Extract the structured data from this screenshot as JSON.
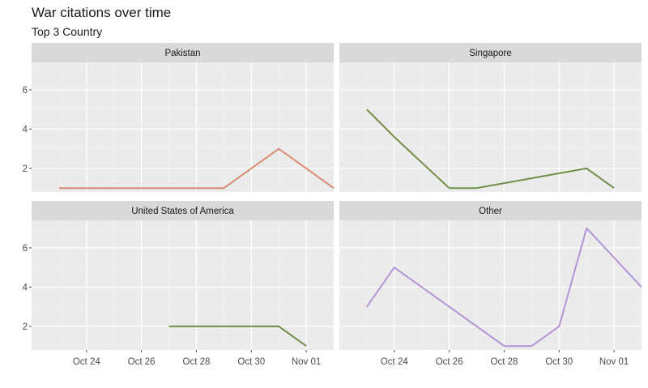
{
  "title": "War citations over time",
  "subtitle": "Top 3 Country",
  "chart_data": {
    "type": "line",
    "facet": "wrap",
    "x_type": "date",
    "xlim": [
      "2023-10-22",
      "2023-11-02"
    ],
    "ylim": [
      0.8,
      7.4
    ],
    "y_ticks": [
      2,
      4,
      6
    ],
    "x_ticks": [
      {
        "date": "2023-10-24",
        "label": "Oct 24"
      },
      {
        "date": "2023-10-26",
        "label": "Oct 26"
      },
      {
        "date": "2023-10-28",
        "label": "Oct 28"
      },
      {
        "date": "2023-10-30",
        "label": "Oct 30"
      },
      {
        "date": "2023-11-01",
        "label": "Nov 01"
      }
    ],
    "grid": true,
    "panels": [
      {
        "label": "Pakistan",
        "color": "#d98b72",
        "x_axis": "left",
        "points": [
          {
            "x": "2023-10-23",
            "y": 1
          },
          {
            "x": "2023-10-24",
            "y": 1
          },
          {
            "x": "2023-10-25",
            "y": 1
          },
          {
            "x": "2023-10-26",
            "y": 1
          },
          {
            "x": "2023-10-27",
            "y": 1
          },
          {
            "x": "2023-10-28",
            "y": 1
          },
          {
            "x": "2023-10-29",
            "y": 1
          },
          {
            "x": "2023-10-31",
            "y": 3
          },
          {
            "x": "2023-11-02",
            "y": 1
          }
        ]
      },
      {
        "label": "Singapore",
        "color": "#6f8f46",
        "x_axis": "right",
        "points": [
          {
            "x": "2023-10-23",
            "y": 5
          },
          {
            "x": "2023-10-24",
            "y": 3.6
          },
          {
            "x": "2023-10-26",
            "y": 1
          },
          {
            "x": "2023-10-27",
            "y": 1
          },
          {
            "x": "2023-10-31",
            "y": 2
          },
          {
            "x": "2023-11-01",
            "y": 1
          }
        ]
      },
      {
        "label": "United States of America",
        "color": "#6f8f46",
        "x_axis": "left",
        "points": [
          {
            "x": "2023-10-27",
            "y": 2
          },
          {
            "x": "2023-10-31",
            "y": 2
          },
          {
            "x": "2023-11-01",
            "y": 1
          }
        ]
      },
      {
        "label": "Other",
        "color": "#b493d6",
        "x_axis": "right",
        "points": [
          {
            "x": "2023-10-23",
            "y": 3
          },
          {
            "x": "2023-10-24",
            "y": 5
          },
          {
            "x": "2023-10-28",
            "y": 1
          },
          {
            "x": "2023-10-29",
            "y": 1
          },
          {
            "x": "2023-10-30",
            "y": 2
          },
          {
            "x": "2023-10-31",
            "y": 7
          },
          {
            "x": "2023-11-02",
            "y": 4
          }
        ]
      }
    ]
  }
}
